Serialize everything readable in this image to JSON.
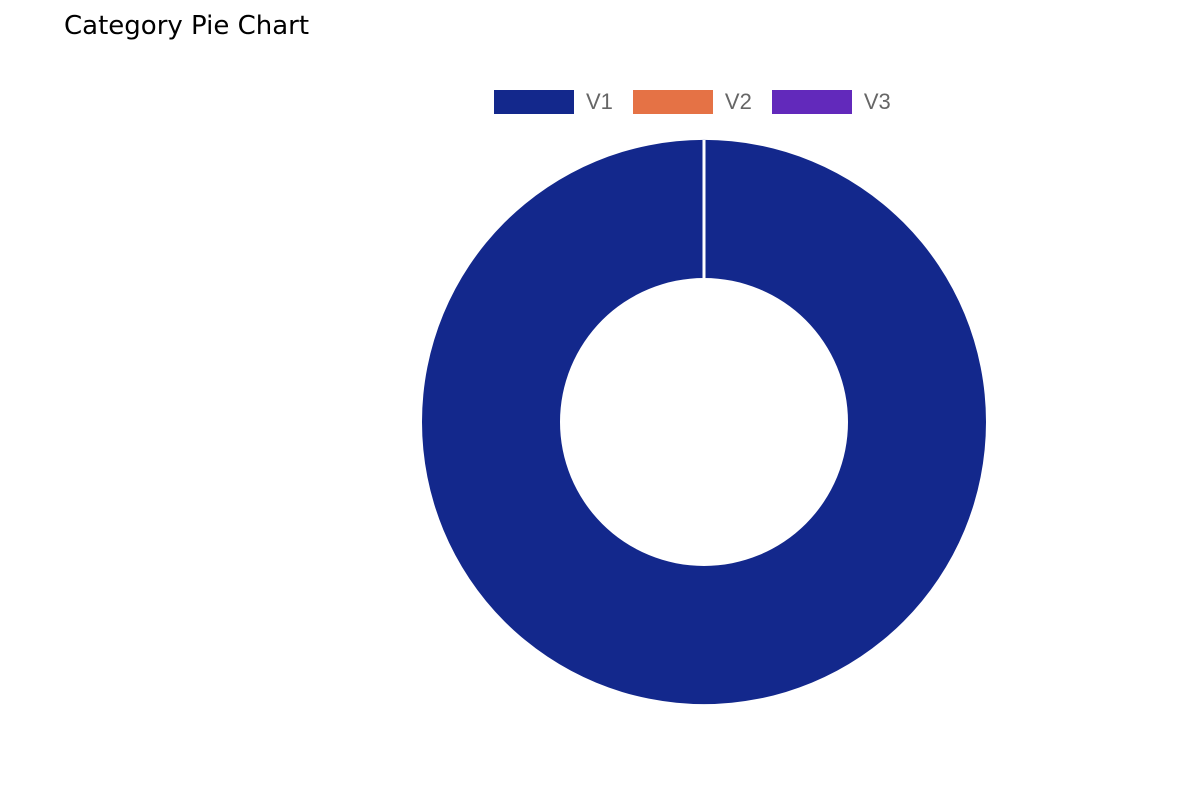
{
  "chart_data": {
    "type": "pie",
    "variant": "doughnut",
    "title": "Category Pie Chart",
    "legend_position": "top",
    "series": [
      {
        "name": "V1",
        "value": 100,
        "color": "#13288c"
      },
      {
        "name": "V2",
        "value": 0,
        "color": "#e57245"
      },
      {
        "name": "V3",
        "value": 0,
        "color": "#6229bb"
      }
    ]
  }
}
